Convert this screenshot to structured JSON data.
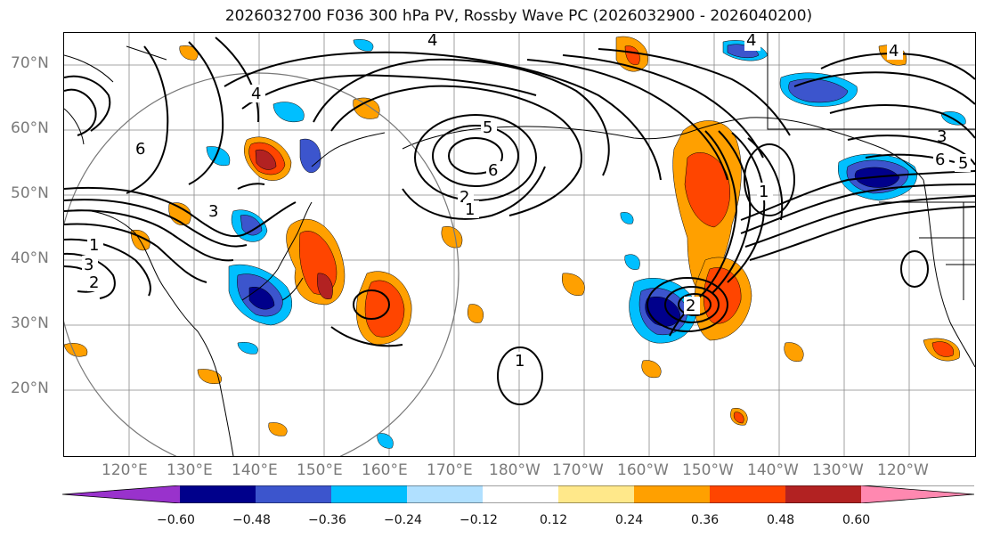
{
  "title": "2026032700 F036 300 hPa PV, Rossby Wave PC (2026032900 - 2026040200)",
  "lat_labels": [
    "70°N",
    "60°N",
    "50°N",
    "40°N",
    "30°N",
    "20°N"
  ],
  "lon_labels": [
    "120°E",
    "130°E",
    "140°E",
    "150°E",
    "160°E",
    "170°E",
    "180°W",
    "170°W",
    "160°W",
    "150°W",
    "140°W",
    "130°W",
    "120°W"
  ],
  "colorbar": {
    "ticks": [
      "−0.60",
      "−0.48",
      "−0.36",
      "−0.24",
      "−0.12",
      "0.12",
      "0.24",
      "0.36",
      "0.48",
      "0.60"
    ],
    "colors": [
      "#9932cc",
      "#00008b",
      "#3c55cd",
      "#00bfff",
      "#b0e0ff",
      "#ffffff",
      "#ffe88a",
      "#ffa000",
      "#ff4500",
      "#b22222",
      "#ff88b0"
    ]
  },
  "contour_labels": {
    "c1": "1",
    "c2": "2",
    "c3": "3",
    "c4": "4",
    "c5": "5",
    "c6": "6"
  }
}
